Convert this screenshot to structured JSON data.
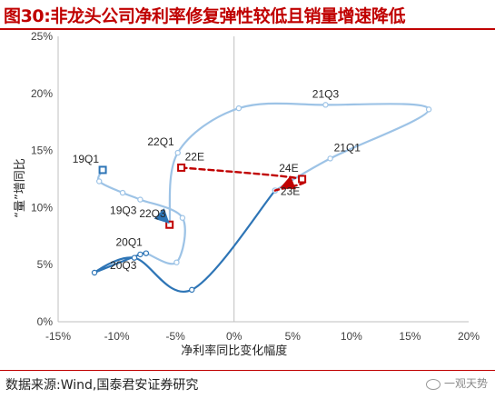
{
  "header": {
    "title": "图30:非龙头公司净利率修复弹性较低且销量增速降低"
  },
  "footer": {
    "source": "数据来源:Wind,国泰君安证券研究",
    "watermark": "一观天势"
  },
  "chart_data": {
    "type": "line",
    "xlabel": "净利率同比变化幅度",
    "ylabel": "“量”增同比",
    "xlim": [
      -15,
      20
    ],
    "ylim": [
      0,
      25
    ],
    "x_ticks": [
      -15,
      -10,
      -5,
      0,
      5,
      10,
      15,
      20
    ],
    "x_tick_labels": [
      "-15%",
      "-10%",
      "-5%",
      "0%",
      "5%",
      "10%",
      "15%",
      "20%"
    ],
    "y_ticks": [
      0,
      5,
      10,
      15,
      20,
      25
    ],
    "y_tick_labels": [
      "0%",
      "5%",
      "10%",
      "15%",
      "20%",
      "25%"
    ],
    "grid": false,
    "series": [
      {
        "style": "solid",
        "color": "#9dc3e6",
        "points": [
          [
            -11.2,
            13.3
          ],
          [
            -11.5,
            12.3
          ],
          [
            -9.5,
            11.3
          ],
          [
            -8.0,
            10.7
          ],
          [
            -4.4,
            9.1
          ],
          [
            -4.9,
            5.2
          ],
          [
            -7.5,
            6.0
          ]
        ]
      },
      {
        "style": "solid",
        "color": "#2e75b6",
        "points": [
          [
            -7.5,
            6.0
          ],
          [
            -8.0,
            5.9
          ],
          [
            -11.9,
            4.3
          ],
          [
            -8.5,
            5.6
          ],
          [
            -3.6,
            2.8
          ],
          [
            3.5,
            11.5
          ]
        ]
      },
      {
        "style": "solid",
        "color": "#9dc3e6",
        "points": [
          [
            3.5,
            11.5
          ],
          [
            8.2,
            14.3
          ],
          [
            16.6,
            18.6
          ],
          [
            7.8,
            19.0
          ],
          [
            0.4,
            18.7
          ],
          [
            -4.8,
            14.8
          ],
          [
            -5.5,
            8.5
          ]
        ]
      },
      {
        "style": "dashed",
        "color": "#c00000",
        "points": [
          [
            -4.5,
            13.5
          ],
          [
            5.8,
            12.5
          ],
          [
            3.5,
            11.5
          ]
        ]
      }
    ],
    "markers": [
      {
        "x": -11.2,
        "y": 13.3,
        "shape": "square",
        "color": "#2e75b6"
      },
      {
        "x": -4.5,
        "y": 13.5,
        "shape": "square",
        "color": "#c00000"
      },
      {
        "x": -5.5,
        "y": 8.5,
        "shape": "square",
        "color": "#c00000"
      },
      {
        "x": 5.8,
        "y": 12.5,
        "shape": "square",
        "color": "#c00000"
      }
    ],
    "annotations": [
      {
        "text": "21Q3",
        "x": 7.8,
        "y": 19.0,
        "position": "above"
      },
      {
        "text": "22Q1",
        "x": -4.8,
        "y": 14.8,
        "position": "above-left"
      },
      {
        "text": "22E",
        "x": -4.5,
        "y": 13.5,
        "position": "above-right"
      },
      {
        "text": "21Q1",
        "x": 8.2,
        "y": 14.3,
        "position": "above-right"
      },
      {
        "text": "19Q1",
        "x": -11.2,
        "y": 13.3,
        "position": "above-left"
      },
      {
        "text": "19Q3",
        "x": -8.0,
        "y": 10.7,
        "position": "below-left"
      },
      {
        "text": "22Q3",
        "x": -5.5,
        "y": 8.5,
        "position": "above-left"
      },
      {
        "text": "20Q1",
        "x": -7.5,
        "y": 6.0,
        "position": "above-left"
      },
      {
        "text": "20Q3",
        "x": -8.0,
        "y": 5.9,
        "position": "below-left"
      },
      {
        "text": "24E",
        "x": 5.8,
        "y": 12.5,
        "position": "above-left"
      },
      {
        "text": "23E",
        "x": 3.5,
        "y": 11.5,
        "position": "right"
      }
    ],
    "arrows": [
      {
        "from": [
          -7.0,
          10.1
        ],
        "to": [
          -5.5,
          8.6
        ],
        "color": "#2e75b6"
      },
      {
        "from": [
          5.3,
          12.3
        ],
        "to": [
          3.9,
          11.7
        ],
        "color": "#c00000"
      }
    ]
  }
}
